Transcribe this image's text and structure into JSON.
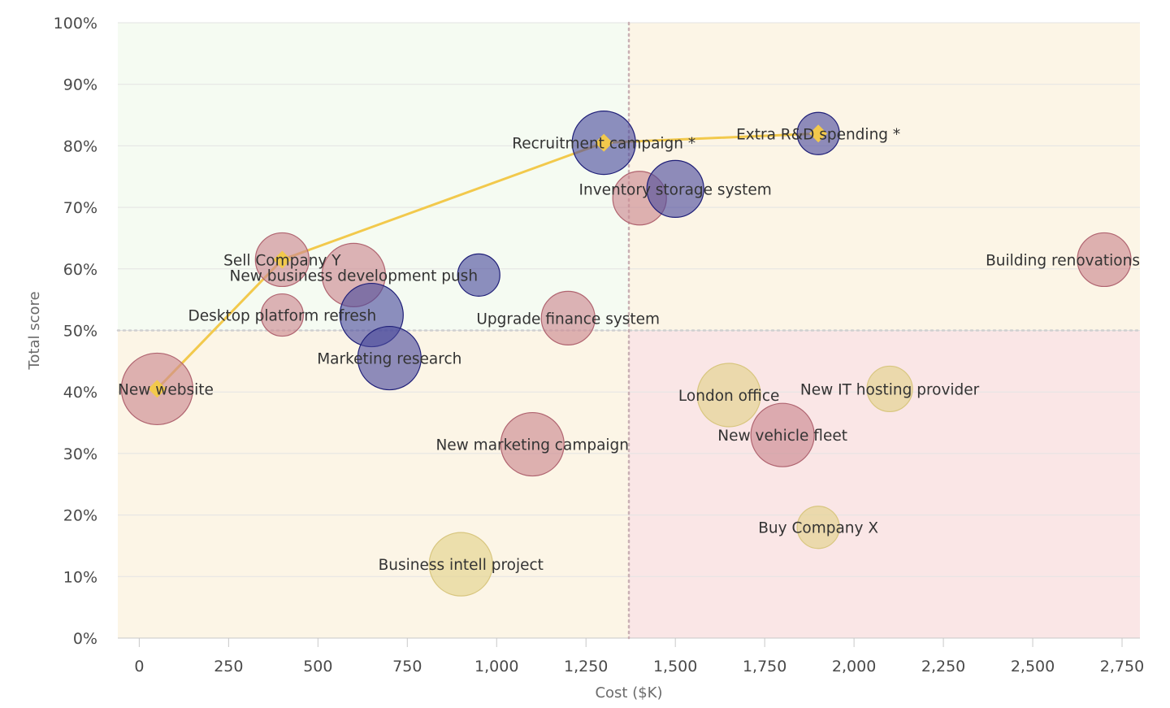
{
  "chart_data": {
    "type": "scatter",
    "subtype": "bubble",
    "xlabel": "Cost ($K)",
    "ylabel": "Total score",
    "xlim": [
      -60,
      2800
    ],
    "ylim": [
      0,
      100
    ],
    "x_ticks": [
      0,
      250,
      500,
      750,
      1000,
      1250,
      1500,
      1750,
      2000,
      2250,
      2500,
      2750
    ],
    "x_tick_labels": [
      "0",
      "250",
      "500",
      "750",
      "1,000",
      "1,250",
      "1,500",
      "1,750",
      "2,000",
      "2,250",
      "2,500",
      "2,750"
    ],
    "y_ticks": [
      0,
      10,
      20,
      30,
      40,
      50,
      60,
      70,
      80,
      90,
      100
    ],
    "y_tick_labels": [
      "0%",
      "10%",
      "20%",
      "30%",
      "40%",
      "50%",
      "60%",
      "70%",
      "80%",
      "90%",
      "100%"
    ],
    "grid": true,
    "quadrants": {
      "x_threshold": 1370,
      "y_threshold": 50,
      "colors": {
        "top_left": "#f5fbf2",
        "top_right": "#fcf5e6",
        "bottom_left": "#fcf5e6",
        "bottom_right": "#fae6e6"
      }
    },
    "category_colors": {
      "blue": "#4b4b9c",
      "pink": "#cc8a92",
      "gold": "#e3d28e"
    },
    "points": [
      {
        "label": "New website",
        "x": 50,
        "y": 40.5,
        "size": 44,
        "category": "pink"
      },
      {
        "label": "Sell Company Y",
        "x": 400,
        "y": 61.5,
        "size": 33,
        "category": "pink"
      },
      {
        "label": "Desktop platform refresh",
        "x": 400,
        "y": 52.5,
        "size": 26,
        "category": "pink"
      },
      {
        "label": "New business development push",
        "x": 600,
        "y": 59,
        "size": 39,
        "category": "pink"
      },
      {
        "label": "",
        "x": 650,
        "y": 52.5,
        "size": 39,
        "category": "blue"
      },
      {
        "label": "Marketing research",
        "x": 700,
        "y": 45.5,
        "size": 39,
        "category": "blue"
      },
      {
        "label": "",
        "x": 950,
        "y": 59,
        "size": 26,
        "category": "blue"
      },
      {
        "label": "Business intell project",
        "x": 900,
        "y": 12,
        "size": 39,
        "category": "gold"
      },
      {
        "label": "New marketing campaign",
        "x": 1100,
        "y": 31.5,
        "size": 39,
        "category": "pink"
      },
      {
        "label": "Upgrade finance system",
        "x": 1200,
        "y": 52,
        "size": 33,
        "category": "pink"
      },
      {
        "label": "Recruitment campaign *",
        "x": 1300,
        "y": 80.5,
        "size": 39,
        "category": "blue"
      },
      {
        "label": "",
        "x": 1400,
        "y": 71.5,
        "size": 33,
        "category": "pink"
      },
      {
        "label": "Inventory storage system",
        "x": 1500,
        "y": 73,
        "size": 35,
        "category": "blue"
      },
      {
        "label": "London office",
        "x": 1650,
        "y": 39.5,
        "size": 39,
        "category": "gold"
      },
      {
        "label": "New vehicle fleet",
        "x": 1800,
        "y": 33,
        "size": 39,
        "category": "pink"
      },
      {
        "label": "Extra R&D spending *",
        "x": 1900,
        "y": 82,
        "size": 26,
        "category": "blue"
      },
      {
        "label": "Buy Company X",
        "x": 1900,
        "y": 18,
        "size": 26,
        "category": "gold"
      },
      {
        "label": "New IT hosting provider",
        "x": 2100,
        "y": 40.5,
        "size": 28,
        "category": "gold"
      },
      {
        "label": "Building renovations",
        "x": 2700,
        "y": 61.5,
        "size": 33,
        "category": "pink"
      }
    ],
    "efficient_frontier": {
      "color": "#f2c94c",
      "points": [
        {
          "x": 50,
          "y": 40.5
        },
        {
          "x": 400,
          "y": 61.5
        },
        {
          "x": 1300,
          "y": 80.5
        },
        {
          "x": 1900,
          "y": 82
        }
      ]
    }
  }
}
